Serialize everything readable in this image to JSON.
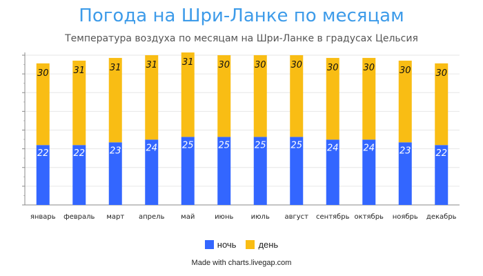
{
  "chart_data": {
    "type": "bar",
    "stacked": true,
    "title": "Погода на Шри-Ланке по месяцам",
    "subtitle": "Температура воздуха по месяцам на Шри-Ланке в градусах Цельсия",
    "categories": [
      "январь",
      "февраль",
      "март",
      "апрель",
      "май",
      "июнь",
      "июль",
      "август",
      "сентябрь",
      "октябрь",
      "ноябрь",
      "декабрь"
    ],
    "series": [
      {
        "name": "ночь",
        "color": "#3366ff",
        "values": [
          22,
          22,
          23,
          24,
          25,
          25,
          25,
          25,
          24,
          24,
          23,
          22
        ]
      },
      {
        "name": "день",
        "color": "#f9bd14",
        "values": [
          30,
          31,
          31,
          31,
          31,
          30,
          30,
          30,
          30,
          30,
          30,
          30
        ]
      }
    ],
    "ylim": [
      0,
      55
    ],
    "grid": true,
    "legend_position": "bottom"
  },
  "credit": "Made with charts.livegap.com"
}
